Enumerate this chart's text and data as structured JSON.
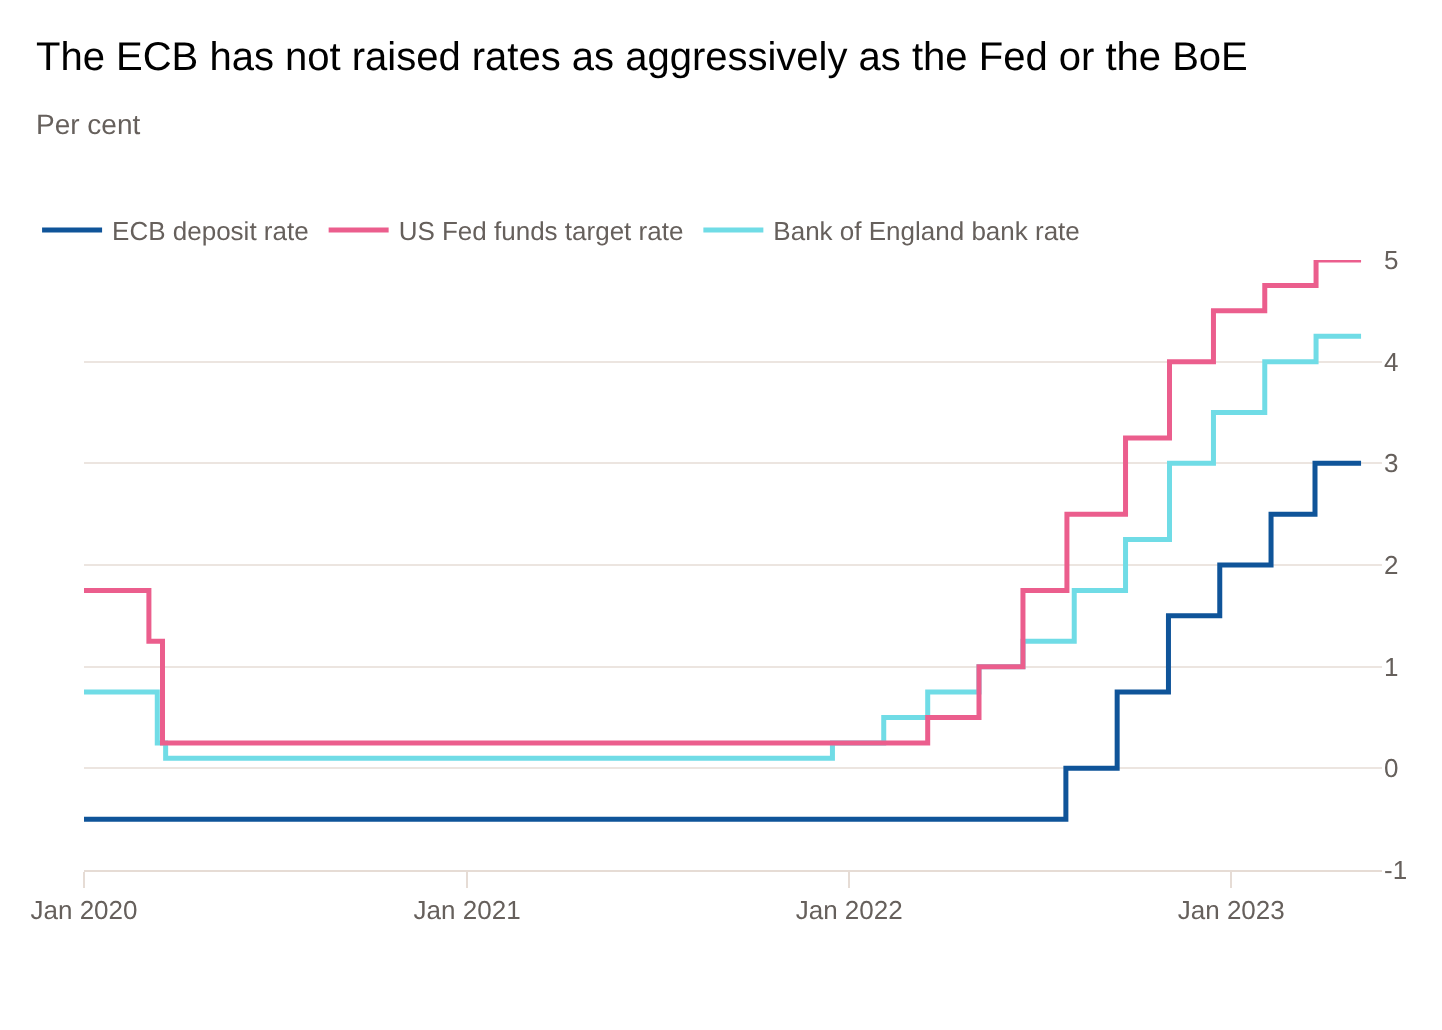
{
  "chart_data": {
    "type": "step",
    "title": "The ECB has not raised rates as aggressively as the Fed or the BoE",
    "subtitle": "Per cent",
    "series": [
      {
        "name": "ECB deposit rate",
        "color": "#0f5499",
        "x": [
          "2020-01-01",
          "2022-07-27",
          "2022-09-14",
          "2022-11-02",
          "2022-12-21",
          "2023-02-08",
          "2023-03-22",
          "2023-05-05"
        ],
        "values": [
          -0.5,
          0,
          0.75,
          1.5,
          2.0,
          2.5,
          3.0,
          3.0
        ]
      },
      {
        "name": "US Fed funds target rate",
        "color": "#eb5e8d",
        "x": [
          "2020-01-01",
          "2020-03-03",
          "2020-03-16",
          "2022-03-17",
          "2022-05-05",
          "2022-06-16",
          "2022-07-28",
          "2022-09-22",
          "2022-11-03",
          "2022-12-15",
          "2023-02-02",
          "2023-03-23",
          "2023-05-05"
        ],
        "values": [
          1.75,
          1.25,
          0.25,
          0.5,
          1.0,
          1.75,
          2.5,
          3.25,
          4.0,
          4.5,
          4.75,
          5.0,
          5.0
        ]
      },
      {
        "name": "Bank of England bank rate",
        "color": "#70dce6",
        "x": [
          "2020-01-01",
          "2020-03-11",
          "2020-03-19",
          "2021-12-16",
          "2022-02-03",
          "2022-03-17",
          "2022-05-05",
          "2022-06-16",
          "2022-08-04",
          "2022-09-22",
          "2022-11-03",
          "2022-12-15",
          "2023-02-02",
          "2023-03-23",
          "2023-05-05"
        ],
        "values": [
          0.75,
          0.25,
          0.1,
          0.25,
          0.5,
          0.75,
          1.0,
          1.25,
          1.75,
          2.25,
          3.0,
          3.5,
          4.0,
          4.25,
          4.25
        ]
      }
    ],
    "xlim": [
      "2020-01-01",
      "2023-05-25"
    ],
    "xticks": [
      {
        "value": "2020-01-01",
        "label": "Jan 2020"
      },
      {
        "value": "2021-01-01",
        "label": "Jan 2021"
      },
      {
        "value": "2022-01-01",
        "label": "Jan 2022"
      },
      {
        "value": "2023-01-01",
        "label": "Jan 2023"
      }
    ],
    "ylim": [
      -1,
      5
    ],
    "yticks": [
      -1,
      0,
      1,
      2,
      3,
      4,
      5
    ],
    "grid": "y",
    "legend": "top left",
    "marker": "none",
    "line_style": "solid"
  }
}
